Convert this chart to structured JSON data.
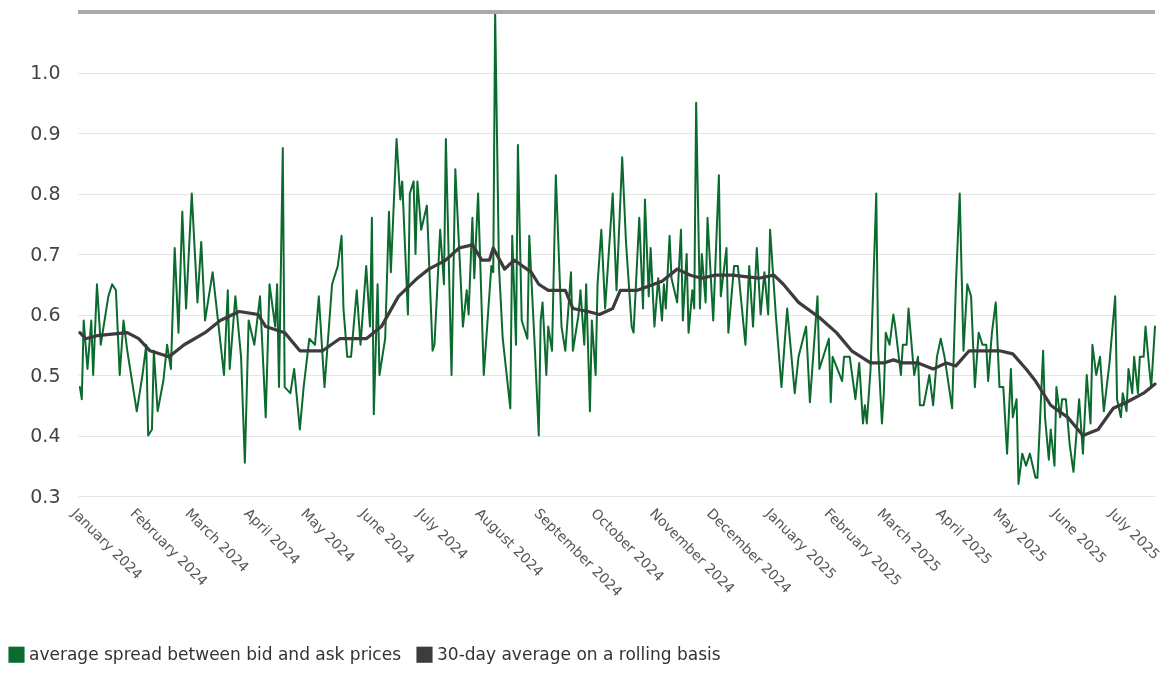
{
  "chart_data": {
    "type": "line",
    "xlim": [
      "2024-01-01",
      "2025-07-22"
    ],
    "ylim": [
      0.3,
      1.1
    ],
    "xticks": [
      {
        "value": "2024-01-01",
        "label": "January 2024"
      },
      {
        "value": "2024-02-01",
        "label": "February 2024"
      },
      {
        "value": "2024-03-01",
        "label": "March 2024"
      },
      {
        "value": "2024-04-01",
        "label": "April 2024"
      },
      {
        "value": "2024-05-01",
        "label": "May 2024"
      },
      {
        "value": "2024-06-01",
        "label": "June 2024"
      },
      {
        "value": "2024-07-01",
        "label": "July 2024"
      },
      {
        "value": "2024-08-01",
        "label": "August 2024"
      },
      {
        "value": "2024-09-01",
        "label": "September 2024"
      },
      {
        "value": "2024-10-01",
        "label": "October 2024"
      },
      {
        "value": "2024-11-01",
        "label": "November 2024"
      },
      {
        "value": "2024-12-01",
        "label": "December 2024"
      },
      {
        "value": "2025-01-01",
        "label": "January 2025"
      },
      {
        "value": "2025-02-01",
        "label": "February 2025"
      },
      {
        "value": "2025-03-01",
        "label": "March 2025"
      },
      {
        "value": "2025-04-01",
        "label": "April 2025"
      },
      {
        "value": "2025-05-01",
        "label": "May 2025"
      },
      {
        "value": "2025-06-01",
        "label": "June 2025"
      },
      {
        "value": "2025-07-01",
        "label": "July 2025"
      }
    ],
    "yticks": [
      0.3,
      0.4,
      0.5,
      0.6,
      0.7,
      0.8,
      0.9,
      {
        "value": 1,
        "label": "1.0"
      }
    ],
    "grid": "y",
    "legend": "bottom left",
    "series": [
      {
        "name": "average spread between bid and ask prices",
        "color": "#0b6b2e",
        "x": [
          "2024-01-02",
          "2024-01-03",
          "2024-01-04",
          "2024-01-06",
          "2024-01-08",
          "2024-01-09",
          "2024-01-11",
          "2024-01-13",
          "2024-01-17",
          "2024-01-19",
          "2024-01-21",
          "2024-01-23",
          "2024-01-25",
          "2024-01-27",
          "2024-02-01",
          "2024-02-04",
          "2024-02-06",
          "2024-02-07",
          "2024-02-09",
          "2024-02-10",
          "2024-02-12",
          "2024-02-15",
          "2024-02-17",
          "2024-02-19",
          "2024-02-21",
          "2024-02-23",
          "2024-02-25",
          "2024-02-27",
          "2024-03-01",
          "2024-03-04",
          "2024-03-06",
          "2024-03-08",
          "2024-03-12",
          "2024-03-18",
          "2024-03-20",
          "2024-03-21",
          "2024-03-24",
          "2024-03-27",
          "2024-03-29",
          "2024-03-31",
          "2024-04-03",
          "2024-04-06",
          "2024-04-09",
          "2024-04-11",
          "2024-04-14",
          "2024-04-15",
          "2024-04-16",
          "2024-04-18",
          "2024-04-19",
          "2024-04-22",
          "2024-04-24",
          "2024-04-27",
          "2024-04-29",
          "2024-05-02",
          "2024-05-05",
          "2024-05-07",
          "2024-05-10",
          "2024-05-14",
          "2024-05-17",
          "2024-05-19",
          "2024-05-20",
          "2024-05-22",
          "2024-05-24",
          "2024-05-27",
          "2024-05-29",
          "2024-06-01",
          "2024-06-03",
          "2024-06-04",
          "2024-06-05",
          "2024-06-07",
          "2024-06-08",
          "2024-06-11",
          "2024-06-13",
          "2024-06-14",
          "2024-06-17",
          "2024-06-19",
          "2024-06-20",
          "2024-06-23",
          "2024-06-24",
          "2024-06-26",
          "2024-06-27",
          "2024-06-28",
          "2024-06-30",
          "2024-07-03",
          "2024-07-06",
          "2024-07-07",
          "2024-07-10",
          "2024-07-12",
          "2024-07-13",
          "2024-07-16",
          "2024-07-18",
          "2024-07-22",
          "2024-07-24",
          "2024-07-25",
          "2024-07-27",
          "2024-07-28",
          "2024-07-30",
          "2024-08-02",
          "2024-08-04",
          "2024-08-06",
          "2024-08-07",
          "2024-08-08",
          "2024-08-10",
          "2024-08-12",
          "2024-08-16",
          "2024-08-17",
          "2024-08-19",
          "2024-08-20",
          "2024-08-22",
          "2024-08-25",
          "2024-08-26",
          "2024-08-29",
          "2024-08-31",
          "2024-09-01",
          "2024-09-02",
          "2024-09-04",
          "2024-09-05",
          "2024-09-07",
          "2024-09-09",
          "2024-09-12",
          "2024-09-14",
          "2024-09-17",
          "2024-09-18",
          "2024-09-21",
          "2024-09-22",
          "2024-09-24",
          "2024-09-25",
          "2024-09-27",
          "2024-09-28",
          "2024-09-30",
          "2024-10-01",
          "2024-10-03",
          "2024-10-05",
          "2024-10-09",
          "2024-10-11",
          "2024-10-14",
          "2024-10-16",
          "2024-10-19",
          "2024-10-20",
          "2024-10-23",
          "2024-10-25",
          "2024-10-26",
          "2024-10-28",
          "2024-10-29",
          "2024-10-31",
          "2024-11-02",
          "2024-11-04",
          "2024-11-05",
          "2024-11-06",
          "2024-11-08",
          "2024-11-09",
          "2024-11-12",
          "2024-11-14",
          "2024-11-15",
          "2024-11-17",
          "2024-11-18",
          "2024-11-20",
          "2024-11-21",
          "2024-11-22",
          "2024-11-24",
          "2024-11-25",
          "2024-11-27",
          "2024-11-28",
          "2024-12-01",
          "2024-12-04",
          "2024-12-05",
          "2024-12-08",
          "2024-12-09",
          "2024-12-12",
          "2024-12-14",
          "2024-12-18",
          "2024-12-20",
          "2024-12-22",
          "2024-12-24",
          "2024-12-26",
          "2024-12-28",
          "2024-12-30",
          "2024-12-31",
          "2025-01-03",
          "2025-01-06",
          "2025-01-09",
          "2025-01-13",
          "2025-01-15",
          "2025-01-19",
          "2025-01-21",
          "2025-01-25",
          "2025-01-26",
          "2025-01-31",
          "2025-02-01",
          "2025-02-02",
          "2025-02-07",
          "2025-02-08",
          "2025-02-11",
          "2025-02-14",
          "2025-02-16",
          "2025-02-18",
          "2025-02-19",
          "2025-02-20",
          "2025-02-22",
          "2025-02-25",
          "2025-02-26",
          "2025-02-28",
          "2025-03-01",
          "2025-03-02",
          "2025-03-04",
          "2025-03-06",
          "2025-03-07",
          "2025-03-10",
          "2025-03-11",
          "2025-03-13",
          "2025-03-14",
          "2025-03-17",
          "2025-03-19",
          "2025-03-20",
          "2025-03-22",
          "2025-03-25",
          "2025-03-27",
          "2025-03-29",
          "2025-03-31",
          "2025-04-02",
          "2025-04-06",
          "2025-04-08",
          "2025-04-10",
          "2025-04-12",
          "2025-04-14",
          "2025-04-16",
          "2025-04-18",
          "2025-04-20",
          "2025-04-22",
          "2025-04-24",
          "2025-04-25",
          "2025-04-27",
          "2025-04-29",
          "2025-05-01",
          "2025-05-03",
          "2025-05-05",
          "2025-05-07",
          "2025-05-08",
          "2025-05-10",
          "2025-05-11",
          "2025-05-13",
          "2025-05-15",
          "2025-05-17",
          "2025-05-20",
          "2025-05-21",
          "2025-05-24",
          "2025-05-25",
          "2025-05-27",
          "2025-05-28",
          "2025-05-30",
          "2025-05-31",
          "2025-06-02",
          "2025-06-03",
          "2025-06-05",
          "2025-06-07",
          "2025-06-09",
          "2025-06-12",
          "2025-06-14",
          "2025-06-16",
          "2025-06-18",
          "2025-06-19",
          "2025-06-21",
          "2025-06-23",
          "2025-06-25",
          "2025-06-28",
          "2025-07-01",
          "2025-07-02",
          "2025-07-04",
          "2025-07-05",
          "2025-07-07",
          "2025-07-08",
          "2025-07-10",
          "2025-07-11",
          "2025-07-13",
          "2025-07-14",
          "2025-07-16",
          "2025-07-17",
          "2025-07-19",
          "2025-07-20",
          "2025-07-22"
        ],
        "values": [
          0.48,
          0.46,
          0.59,
          0.51,
          0.59,
          0.5,
          0.65,
          0.55,
          0.63,
          0.65,
          0.64,
          0.5,
          0.59,
          0.54,
          0.44,
          0.5,
          0.55,
          0.4,
          0.41,
          0.54,
          0.44,
          0.49,
          0.55,
          0.51,
          0.71,
          0.57,
          0.77,
          0.61,
          0.8,
          0.62,
          0.72,
          0.59,
          0.67,
          0.5,
          0.64,
          0.51,
          0.63,
          0.53,
          0.355,
          0.59,
          0.55,
          0.63,
          0.43,
          0.65,
          0.58,
          0.65,
          0.48,
          0.875,
          0.48,
          0.47,
          0.51,
          0.41,
          0.48,
          0.56,
          0.55,
          0.63,
          0.48,
          0.65,
          0.68,
          0.73,
          0.61,
          0.53,
          0.53,
          0.64,
          0.55,
          0.68,
          0.58,
          0.76,
          0.435,
          0.65,
          0.5,
          0.56,
          0.77,
          0.67,
          0.89,
          0.79,
          0.82,
          0.6,
          0.8,
          0.82,
          0.7,
          0.82,
          0.74,
          0.78,
          0.54,
          0.55,
          0.74,
          0.65,
          0.89,
          0.5,
          0.84,
          0.58,
          0.64,
          0.6,
          0.76,
          0.66,
          0.8,
          0.5,
          0.59,
          0.68,
          0.67,
          1.1,
          0.68,
          0.56,
          0.445,
          0.73,
          0.55,
          0.88,
          0.59,
          0.56,
          0.73,
          0.54,
          0.4,
          0.59,
          0.62,
          0.5,
          0.58,
          0.54,
          0.83,
          0.58,
          0.54,
          0.67,
          0.54,
          0.6,
          0.64,
          0.55,
          0.65,
          0.44,
          0.59,
          0.5,
          0.65,
          0.74,
          0.61,
          0.8,
          0.64,
          0.86,
          0.72,
          0.58,
          0.57,
          0.76,
          0.61,
          0.79,
          0.63,
          0.71,
          0.58,
          0.66,
          0.59,
          0.65,
          0.61,
          0.73,
          0.66,
          0.62,
          0.74,
          0.59,
          0.7,
          0.57,
          0.64,
          0.61,
          0.95,
          0.61,
          0.7,
          0.62,
          0.76,
          0.59,
          0.83,
          0.63,
          0.71,
          0.57,
          0.68,
          0.68,
          0.55,
          0.68,
          0.58,
          0.71,
          0.6,
          0.67,
          0.6,
          0.74,
          0.6,
          0.48,
          0.61,
          0.47,
          0.53,
          0.58,
          0.455,
          0.63,
          0.51,
          0.56,
          0.455,
          0.53,
          0.49,
          0.53,
          0.53,
          0.46,
          0.52,
          0.42,
          0.45,
          0.42,
          0.51,
          0.8,
          0.54,
          0.42,
          0.47,
          0.57,
          0.55,
          0.6,
          0.58,
          0.5,
          0.55,
          0.55,
          0.61,
          0.5,
          0.53,
          0.45,
          0.45,
          0.5,
          0.45,
          0.53,
          0.56,
          0.53,
          0.445,
          0.65,
          0.8,
          0.54,
          0.65,
          0.63,
          0.48,
          0.57,
          0.55,
          0.55,
          0.49,
          0.57,
          0.62,
          0.48,
          0.48,
          0.37,
          0.51,
          0.43,
          0.46,
          0.32,
          0.37,
          0.35,
          0.37,
          0.33,
          0.33,
          0.54,
          0.43,
          0.36,
          0.41,
          0.35,
          0.48,
          0.43,
          0.46,
          0.46,
          0.385,
          0.34,
          0.46,
          0.37,
          0.5,
          0.42,
          0.55,
          0.5,
          0.53,
          0.44,
          0.52,
          0.63,
          0.46,
          0.43,
          0.47,
          0.44,
          0.51,
          0.47,
          0.53,
          0.47,
          0.53,
          0.53,
          0.58,
          0.51,
          0.48,
          0.58
        ]
      },
      {
        "name": "30-day average on a rolling basis",
        "color": "#3d3b3d",
        "x": [
          "2024-01-02",
          "2024-01-05",
          "2024-01-11",
          "2024-01-27",
          "2024-02-02",
          "2024-02-08",
          "2024-02-18",
          "2024-02-26",
          "2024-03-08",
          "2024-03-16",
          "2024-03-26",
          "2024-04-05",
          "2024-04-09",
          "2024-04-19",
          "2024-04-27",
          "2024-05-09",
          "2024-05-18",
          "2024-05-27",
          "2024-06-01",
          "2024-06-09",
          "2024-06-18",
          "2024-06-28",
          "2024-07-04",
          "2024-07-13",
          "2024-07-20",
          "2024-07-27",
          "2024-08-01",
          "2024-08-05",
          "2024-08-07",
          "2024-08-13",
          "2024-08-18",
          "2024-08-27",
          "2024-08-31",
          "2024-09-05",
          "2024-09-14",
          "2024-09-18",
          "2024-09-26",
          "2024-10-02",
          "2024-10-09",
          "2024-10-13",
          "2024-10-22",
          "2024-11-04",
          "2024-11-12",
          "2024-11-19",
          "2024-11-25",
          "2024-12-02",
          "2024-12-11",
          "2024-12-25",
          "2025-01-02",
          "2025-01-07",
          "2025-01-15",
          "2025-01-26",
          "2025-02-04",
          "2025-02-12",
          "2025-02-22",
          "2025-03-01",
          "2025-03-06",
          "2025-03-11",
          "2025-03-19",
          "2025-03-27",
          "2025-04-03",
          "2025-04-08",
          "2025-04-15",
          "2025-04-26",
          "2025-05-01",
          "2025-05-08",
          "2025-05-15",
          "2025-05-20",
          "2025-05-28",
          "2025-06-06",
          "2025-06-14",
          "2025-06-22",
          "2025-06-30",
          "2025-07-07",
          "2025-07-16",
          "2025-07-22"
        ],
        "values": [
          0.57,
          0.56,
          0.565,
          0.57,
          0.56,
          0.54,
          0.53,
          0.55,
          0.57,
          0.59,
          0.605,
          0.6,
          0.58,
          0.57,
          0.54,
          0.54,
          0.56,
          0.56,
          0.56,
          0.58,
          0.63,
          0.66,
          0.675,
          0.69,
          0.71,
          0.715,
          0.69,
          0.69,
          0.71,
          0.675,
          0.69,
          0.67,
          0.65,
          0.64,
          0.64,
          0.61,
          0.605,
          0.6,
          0.61,
          0.64,
          0.64,
          0.655,
          0.675,
          0.665,
          0.66,
          0.665,
          0.665,
          0.66,
          0.665,
          0.65,
          0.62,
          0.595,
          0.57,
          0.54,
          0.52,
          0.52,
          0.525,
          0.52,
          0.52,
          0.51,
          0.52,
          0.515,
          0.54,
          0.54,
          0.54,
          0.535,
          0.51,
          0.49,
          0.45,
          0.43,
          0.4,
          0.41,
          0.445,
          0.455,
          0.47,
          0.485
        ]
      }
    ]
  }
}
